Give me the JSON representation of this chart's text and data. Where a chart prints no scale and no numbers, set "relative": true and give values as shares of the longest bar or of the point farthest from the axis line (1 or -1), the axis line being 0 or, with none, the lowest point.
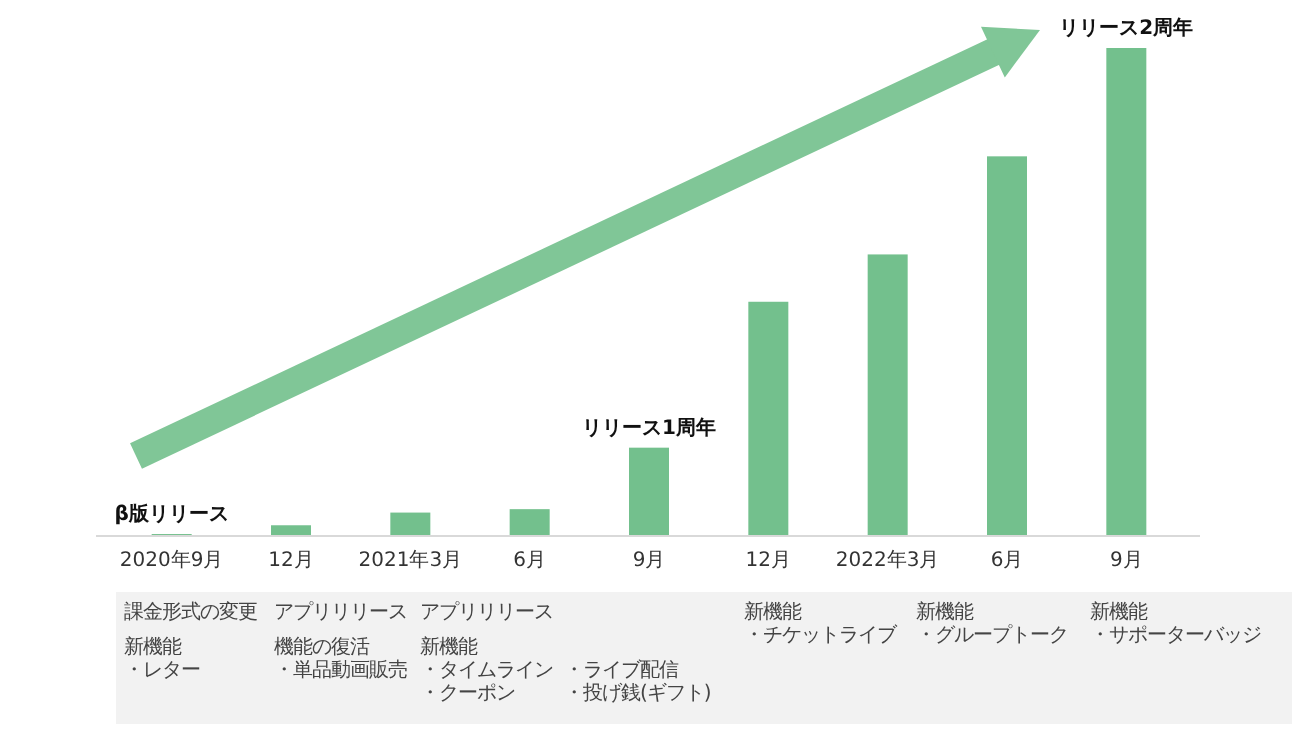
{
  "chart_data": {
    "type": "bar",
    "relative": true,
    "color": "#73c08d",
    "categories": [
      "2020年9月",
      "12月",
      "2021年3月",
      "6月",
      "9月",
      "12月",
      "2022年3月",
      "6月",
      "9月"
    ],
    "values": [
      0.004,
      0.022,
      0.048,
      0.055,
      0.181,
      0.48,
      0.577,
      0.778,
      1
    ],
    "annotations": [
      "β版リリース",
      "リリース1周年",
      "リリース2周年",
      "課金形式の変更",
      "新機能",
      "・レター",
      "アプリリリース",
      "機能の復活",
      "・単品動画販売",
      "アプリリリース",
      "新機能",
      "・タイムライン",
      "・ライブ配信",
      "・クーポン",
      "・投げ銭(ギフト)",
      "新機能",
      "・チケットライブ",
      "新機能",
      "・グループトーク",
      "新機能",
      "・サポーターバッジ"
    ]
  }
}
